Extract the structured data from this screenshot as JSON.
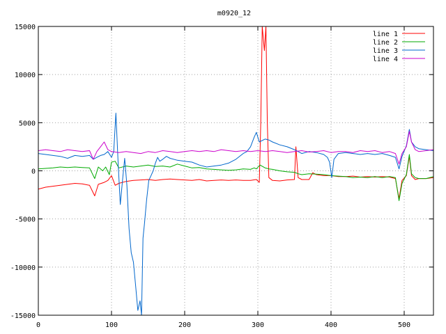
{
  "chart_data": {
    "type": "line",
    "title": "m0920_12",
    "xlabel": "",
    "ylabel": "",
    "xlim": [
      0,
      540
    ],
    "ylim": [
      -15000,
      15000
    ],
    "xticks": [
      0,
      100,
      200,
      300,
      400,
      500
    ],
    "yticks": [
      -15000,
      -10000,
      -5000,
      0,
      5000,
      10000,
      15000
    ],
    "xtick_labels": [
      "0",
      "100",
      "200",
      "300",
      "400",
      "500"
    ],
    "ytick_labels": [
      "-15000",
      "-10000",
      "-5000",
      "0",
      "5000",
      "10000",
      "15000"
    ],
    "grid": true,
    "legend_position": "top-right",
    "series": [
      {
        "name": "line 1",
        "color": "#ff0000",
        "points": [
          [
            0,
            -1900
          ],
          [
            10,
            -1700
          ],
          [
            20,
            -1600
          ],
          [
            30,
            -1500
          ],
          [
            40,
            -1400
          ],
          [
            50,
            -1300
          ],
          [
            60,
            -1350
          ],
          [
            70,
            -1500
          ],
          [
            77,
            -2600
          ],
          [
            82,
            -1400
          ],
          [
            90,
            -1200
          ],
          [
            95,
            -1000
          ],
          [
            100,
            -500
          ],
          [
            105,
            -1500
          ],
          [
            110,
            -1300
          ],
          [
            120,
            -1100
          ],
          [
            130,
            -1000
          ],
          [
            140,
            -950
          ],
          [
            150,
            -900
          ],
          [
            160,
            -1000
          ],
          [
            170,
            -900
          ],
          [
            180,
            -850
          ],
          [
            190,
            -900
          ],
          [
            200,
            -950
          ],
          [
            210,
            -1000
          ],
          [
            220,
            -900
          ],
          [
            230,
            -1050
          ],
          [
            240,
            -1000
          ],
          [
            250,
            -950
          ],
          [
            260,
            -1000
          ],
          [
            270,
            -950
          ],
          [
            280,
            -1000
          ],
          [
            290,
            -1000
          ],
          [
            298,
            -900
          ],
          [
            302,
            -1200
          ],
          [
            304,
            5000
          ],
          [
            306,
            15000
          ],
          [
            309,
            12500
          ],
          [
            311,
            15000
          ],
          [
            313,
            5000
          ],
          [
            315,
            -700
          ],
          [
            320,
            -1000
          ],
          [
            330,
            -1050
          ],
          [
            340,
            -950
          ],
          [
            350,
            -900
          ],
          [
            352,
            2500
          ],
          [
            355,
            -700
          ],
          [
            360,
            -900
          ],
          [
            370,
            -900
          ],
          [
            375,
            -200
          ],
          [
            380,
            -400
          ],
          [
            390,
            -500
          ],
          [
            400,
            -500
          ],
          [
            410,
            -600
          ],
          [
            420,
            -600
          ],
          [
            430,
            -550
          ],
          [
            440,
            -650
          ],
          [
            450,
            -600
          ],
          [
            460,
            -650
          ],
          [
            470,
            -600
          ],
          [
            480,
            -650
          ],
          [
            488,
            -800
          ],
          [
            493,
            -2900
          ],
          [
            497,
            -1000
          ],
          [
            503,
            -500
          ],
          [
            507,
            1500
          ],
          [
            510,
            -500
          ],
          [
            515,
            -900
          ],
          [
            520,
            -800
          ],
          [
            530,
            -800
          ],
          [
            540,
            -700
          ]
        ]
      },
      {
        "name": "line 2",
        "color": "#00aa00",
        "points": [
          [
            0,
            200
          ],
          [
            10,
            250
          ],
          [
            20,
            300
          ],
          [
            30,
            400
          ],
          [
            40,
            350
          ],
          [
            50,
            400
          ],
          [
            60,
            350
          ],
          [
            70,
            300
          ],
          [
            77,
            -800
          ],
          [
            82,
            400
          ],
          [
            88,
            0
          ],
          [
            92,
            400
          ],
          [
            97,
            -400
          ],
          [
            100,
            900
          ],
          [
            105,
            1000
          ],
          [
            110,
            300
          ],
          [
            120,
            500
          ],
          [
            130,
            400
          ],
          [
            140,
            500
          ],
          [
            150,
            600
          ],
          [
            160,
            450
          ],
          [
            170,
            500
          ],
          [
            180,
            400
          ],
          [
            190,
            700
          ],
          [
            200,
            500
          ],
          [
            210,
            300
          ],
          [
            220,
            350
          ],
          [
            230,
            200
          ],
          [
            240,
            150
          ],
          [
            250,
            100
          ],
          [
            260,
            50
          ],
          [
            270,
            100
          ],
          [
            280,
            200
          ],
          [
            290,
            150
          ],
          [
            295,
            300
          ],
          [
            298,
            200
          ],
          [
            303,
            600
          ],
          [
            310,
            300
          ],
          [
            315,
            200
          ],
          [
            320,
            150
          ],
          [
            330,
            0
          ],
          [
            340,
            -100
          ],
          [
            350,
            -150
          ],
          [
            355,
            -300
          ],
          [
            360,
            -400
          ],
          [
            370,
            -300
          ],
          [
            380,
            -350
          ],
          [
            390,
            -400
          ],
          [
            400,
            -500
          ],
          [
            410,
            -550
          ],
          [
            420,
            -600
          ],
          [
            430,
            -700
          ],
          [
            440,
            -650
          ],
          [
            450,
            -700
          ],
          [
            460,
            -600
          ],
          [
            470,
            -700
          ],
          [
            480,
            -600
          ],
          [
            488,
            -700
          ],
          [
            493,
            -3100
          ],
          [
            497,
            -1300
          ],
          [
            503,
            -400
          ],
          [
            507,
            1700
          ],
          [
            510,
            -300
          ],
          [
            515,
            -700
          ],
          [
            520,
            -800
          ],
          [
            530,
            -800
          ],
          [
            540,
            -600
          ]
        ]
      },
      {
        "name": "line 3",
        "color": "#0066cc",
        "points": [
          [
            0,
            1800
          ],
          [
            10,
            1700
          ],
          [
            20,
            1600
          ],
          [
            30,
            1500
          ],
          [
            40,
            1300
          ],
          [
            50,
            1600
          ],
          [
            60,
            1500
          ],
          [
            70,
            1600
          ],
          [
            75,
            1200
          ],
          [
            80,
            1400
          ],
          [
            85,
            1600
          ],
          [
            90,
            1700
          ],
          [
            95,
            2000
          ],
          [
            100,
            1400
          ],
          [
            103,
            2000
          ],
          [
            106,
            6000
          ],
          [
            109,
            1000
          ],
          [
            112,
            -3500
          ],
          [
            115,
            -1000
          ],
          [
            118,
            1300
          ],
          [
            121,
            -1500
          ],
          [
            124,
            -6000
          ],
          [
            127,
            -8500
          ],
          [
            130,
            -9500
          ],
          [
            133,
            -12000
          ],
          [
            136,
            -14500
          ],
          [
            139,
            -13500
          ],
          [
            141,
            -15000
          ],
          [
            143,
            -7000
          ],
          [
            145,
            -5500
          ],
          [
            148,
            -3000
          ],
          [
            151,
            -1000
          ],
          [
            154,
            -500
          ],
          [
            157,
            0
          ],
          [
            160,
            800
          ],
          [
            163,
            1400
          ],
          [
            166,
            1000
          ],
          [
            170,
            1200
          ],
          [
            175,
            1500
          ],
          [
            180,
            1300
          ],
          [
            190,
            1100
          ],
          [
            200,
            1000
          ],
          [
            210,
            900
          ],
          [
            220,
            600
          ],
          [
            230,
            400
          ],
          [
            240,
            500
          ],
          [
            250,
            600
          ],
          [
            260,
            800
          ],
          [
            270,
            1200
          ],
          [
            280,
            1800
          ],
          [
            285,
            2000
          ],
          [
            290,
            2500
          ],
          [
            295,
            3500
          ],
          [
            298,
            4000
          ],
          [
            302,
            3000
          ],
          [
            310,
            3300
          ],
          [
            315,
            3200
          ],
          [
            320,
            3000
          ],
          [
            330,
            2700
          ],
          [
            340,
            2500
          ],
          [
            350,
            2200
          ],
          [
            355,
            2000
          ],
          [
            360,
            1800
          ],
          [
            370,
            2000
          ],
          [
            380,
            1900
          ],
          [
            390,
            1700
          ],
          [
            395,
            1400
          ],
          [
            398,
            900
          ],
          [
            401,
            -700
          ],
          [
            404,
            1200
          ],
          [
            410,
            1800
          ],
          [
            420,
            1900
          ],
          [
            430,
            1800
          ],
          [
            440,
            1700
          ],
          [
            450,
            1800
          ],
          [
            460,
            1700
          ],
          [
            470,
            1800
          ],
          [
            480,
            1600
          ],
          [
            488,
            1400
          ],
          [
            493,
            200
          ],
          [
            497,
            1500
          ],
          [
            503,
            2600
          ],
          [
            507,
            4300
          ],
          [
            510,
            3000
          ],
          [
            515,
            2500
          ],
          [
            520,
            2300
          ],
          [
            530,
            2200
          ],
          [
            540,
            2100
          ]
        ]
      },
      {
        "name": "line 4",
        "color": "#cc00cc",
        "points": [
          [
            0,
            2100
          ],
          [
            10,
            2200
          ],
          [
            20,
            2100
          ],
          [
            30,
            2000
          ],
          [
            40,
            2200
          ],
          [
            50,
            2100
          ],
          [
            60,
            2000
          ],
          [
            70,
            2100
          ],
          [
            75,
            1200
          ],
          [
            80,
            2000
          ],
          [
            85,
            2500
          ],
          [
            90,
            3000
          ],
          [
            95,
            2200
          ],
          [
            100,
            2000
          ],
          [
            110,
            1900
          ],
          [
            120,
            2000
          ],
          [
            130,
            1900
          ],
          [
            140,
            1800
          ],
          [
            150,
            2000
          ],
          [
            160,
            1900
          ],
          [
            170,
            2100
          ],
          [
            180,
            2000
          ],
          [
            190,
            1900
          ],
          [
            200,
            2000
          ],
          [
            210,
            2100
          ],
          [
            220,
            2000
          ],
          [
            230,
            2100
          ],
          [
            240,
            2000
          ],
          [
            250,
            2200
          ],
          [
            260,
            2100
          ],
          [
            270,
            2000
          ],
          [
            280,
            2100
          ],
          [
            290,
            2000
          ],
          [
            300,
            2100
          ],
          [
            310,
            2000
          ],
          [
            320,
            2100
          ],
          [
            330,
            2000
          ],
          [
            340,
            1900
          ],
          [
            350,
            2000
          ],
          [
            360,
            2100
          ],
          [
            370,
            1950
          ],
          [
            380,
            2000
          ],
          [
            390,
            2100
          ],
          [
            400,
            1900
          ],
          [
            410,
            2000
          ],
          [
            420,
            2000
          ],
          [
            430,
            1900
          ],
          [
            440,
            2100
          ],
          [
            450,
            2000
          ],
          [
            460,
            2100
          ],
          [
            470,
            1900
          ],
          [
            480,
            2000
          ],
          [
            488,
            1800
          ],
          [
            493,
            700
          ],
          [
            497,
            1800
          ],
          [
            503,
            2500
          ],
          [
            507,
            4100
          ],
          [
            510,
            3000
          ],
          [
            515,
            2200
          ],
          [
            520,
            2000
          ],
          [
            530,
            2100
          ],
          [
            540,
            2200
          ]
        ]
      }
    ]
  }
}
